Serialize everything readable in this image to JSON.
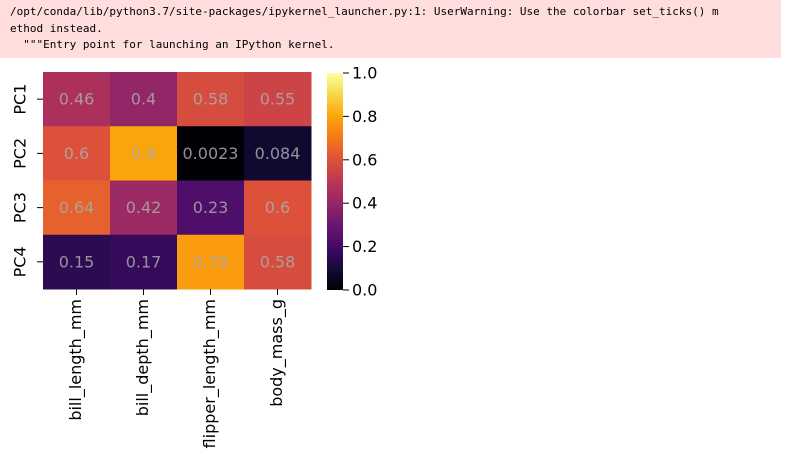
{
  "warning": {
    "lines": [
      "/opt/conda/lib/python3.7/site-packages/ipykernel_launcher.py:1: UserWarning: Use the colorbar set_ticks() m",
      "ethod instead.",
      "  \"\"\"Entry point for launching an IPython kernel."
    ]
  },
  "chart_data": {
    "type": "heatmap",
    "colormap": "inferno",
    "x": [
      "bill_length_mm",
      "bill_depth_mm",
      "flipper_length_mm",
      "body_mass_g"
    ],
    "y": [
      "PC1",
      "PC2",
      "PC3",
      "PC4"
    ],
    "values": [
      [
        0.46,
        0.4,
        0.58,
        0.55
      ],
      [
        0.6,
        0.8,
        0.0023,
        0.084
      ],
      [
        0.64,
        0.42,
        0.23,
        0.6
      ],
      [
        0.15,
        0.17,
        0.78,
        0.58
      ]
    ],
    "clim": [
      0,
      1
    ],
    "cticks": [
      {
        "value": 0,
        "label": "0.0"
      },
      0.2,
      0.4,
      0.6,
      0.8,
      {
        "value": 1,
        "label": "1.0"
      }
    ]
  }
}
